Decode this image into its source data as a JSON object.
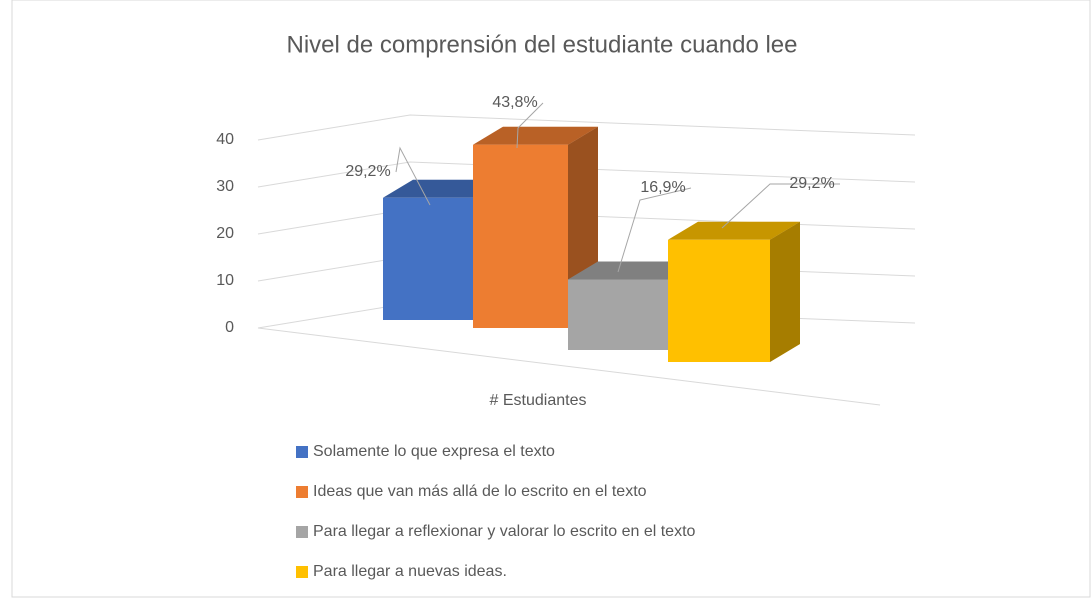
{
  "chart_data": {
    "type": "bar3d",
    "title": "Nivel de comprensión del estudiante cuando lee",
    "categories": [
      "# Estudiantes"
    ],
    "series": [
      {
        "name": "Solamente lo que expresa el texto",
        "color": "#4472c4",
        "values": [
          26
        ],
        "value_labels": [
          "29,2%"
        ]
      },
      {
        "name": "Ideas que van más allá de lo escrito en el texto",
        "color": "#ed7d31",
        "values": [
          39
        ],
        "value_labels": [
          "43,8%"
        ]
      },
      {
        "name": "Para llegar a reflexionar y valorar lo escrito en el texto",
        "color": "#a5a5a5",
        "values": [
          15
        ],
        "value_labels": [
          "16,9%"
        ]
      },
      {
        "name": "Para llegar a nuevas ideas.",
        "color": "#ffc000",
        "values": [
          26
        ],
        "value_labels": [
          "29,2%"
        ]
      }
    ],
    "ylim": [
      0,
      40
    ],
    "yticks": [
      0,
      10,
      20,
      30,
      40
    ],
    "grid": true,
    "legend": "bottom"
  }
}
